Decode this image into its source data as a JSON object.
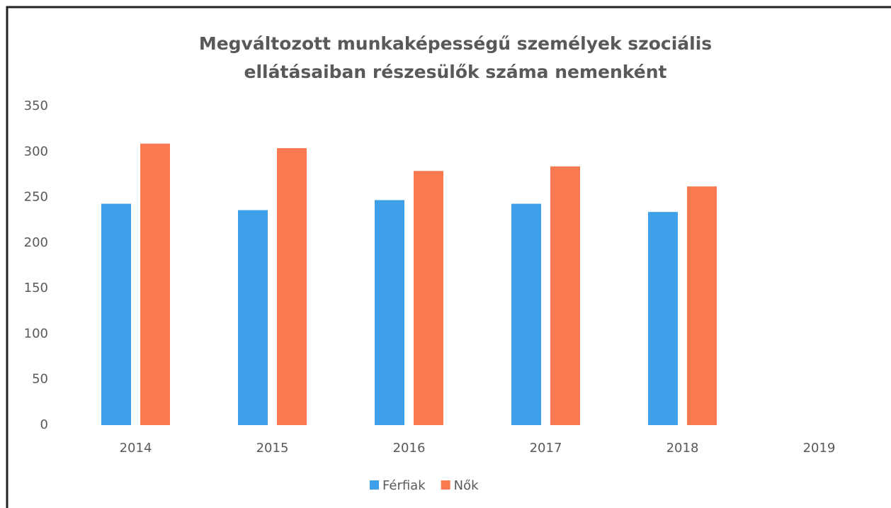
{
  "chart_data": {
    "type": "bar",
    "title": "Megváltozott munkaképességű személyek szociális ellátásaiban részesülők száma nemenként",
    "categories": [
      "2014",
      "2015",
      "2016",
      "2017",
      "2018",
      "2019"
    ],
    "series": [
      {
        "name": "Férfiak",
        "color": "#3ea0e8",
        "values": [
          243,
          236,
          247,
          243,
          234,
          null
        ]
      },
      {
        "name": "Nők",
        "color": "#f97a50",
        "values": [
          309,
          304,
          279,
          284,
          262,
          null
        ]
      }
    ],
    "ylim": [
      0,
      350
    ],
    "yticks": [
      0,
      50,
      100,
      150,
      200,
      250,
      300,
      350
    ],
    "grid": false,
    "legend": "bottom"
  }
}
